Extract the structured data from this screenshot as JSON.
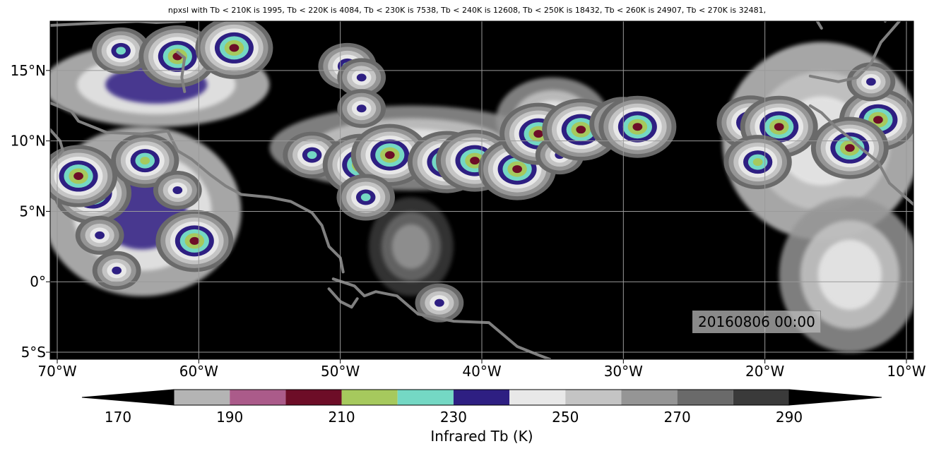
{
  "chart_data": {
    "type": "heatmap",
    "title": "npxsl with Tb < 210K is 1995,  Tb < 220K is 4084,  Tb < 230K is 7538,  Tb < 240K is 12608,  Tb < 250K is 18432,  Tb < 260K is 24907,  Tb < 270K is 32481,",
    "timestamp": "20160806 00:00",
    "x_ticks": [
      {
        "value": -70,
        "label": "70°W"
      },
      {
        "value": -60,
        "label": "60°W"
      },
      {
        "value": -50,
        "label": "50°W"
      },
      {
        "value": -40,
        "label": "40°W"
      },
      {
        "value": -30,
        "label": "30°W"
      },
      {
        "value": -20,
        "label": "20°W"
      },
      {
        "value": -10,
        "label": "10°W"
      }
    ],
    "y_ticks": [
      {
        "value": 15,
        "label": "15°N"
      },
      {
        "value": 10,
        "label": "10°N"
      },
      {
        "value": 5,
        "label": "5°N"
      },
      {
        "value": 0,
        "label": "0°"
      },
      {
        "value": -5,
        "label": "5°S"
      }
    ],
    "xlim": [
      -70.5,
      -9.5
    ],
    "ylim": [
      -5.5,
      18.5
    ],
    "grid": true,
    "colorbar": {
      "label": "Infrared Tb (K)",
      "ticks": [
        170,
        190,
        210,
        230,
        250,
        270,
        290
      ],
      "bounds": [
        170,
        180,
        190,
        200,
        210,
        220,
        230,
        240,
        250,
        260,
        270,
        280,
        290,
        300
      ],
      "colors": [
        "#000000",
        "#b4b4b4",
        "#ab5b8a",
        "#6d0d27",
        "#a6c95d",
        "#74d8c4",
        "#2e1f82",
        "#e8e8e8",
        "#c4c4c4",
        "#959595",
        "#6a6a6a",
        "#3a3a3a",
        "#000000"
      ],
      "extend": "both"
    },
    "thresholds": [
      {
        "tb_below_k": 210,
        "npxsl": 1995
      },
      {
        "tb_below_k": 220,
        "npxsl": 4084
      },
      {
        "tb_below_k": 230,
        "npxsl": 7538
      },
      {
        "tb_below_k": 240,
        "npxsl": 12608
      },
      {
        "tb_below_k": 250,
        "npxsl": 18432
      },
      {
        "tb_below_k": 260,
        "npxsl": 24907
      },
      {
        "tb_below_k": 270,
        "npxsl": 32481
      }
    ],
    "cloud_clusters": [
      {
        "lon": -65.5,
        "lat": 16.4,
        "tb_min": 225
      },
      {
        "lon": -61.5,
        "lat": 16.0,
        "tb_min": 205
      },
      {
        "lon": -57.5,
        "lat": 16.6,
        "tb_min": 202
      },
      {
        "lon": -49.5,
        "lat": 15.3,
        "tb_min": 225
      },
      {
        "lon": -48.5,
        "lat": 14.5,
        "tb_min": 230
      },
      {
        "lon": -48.5,
        "lat": 12.3,
        "tb_min": 232
      },
      {
        "lon": -67.5,
        "lat": 6.3,
        "tb_min": 203
      },
      {
        "lon": -68.5,
        "lat": 7.5,
        "tb_min": 205
      },
      {
        "lon": -63.8,
        "lat": 8.6,
        "tb_min": 208
      },
      {
        "lon": -61.5,
        "lat": 6.5,
        "tb_min": 228
      },
      {
        "lon": -67.0,
        "lat": 3.3,
        "tb_min": 228
      },
      {
        "lon": -65.8,
        "lat": 0.8,
        "tb_min": 228
      },
      {
        "lon": -60.3,
        "lat": 2.9,
        "tb_min": 205
      },
      {
        "lon": -52.0,
        "lat": 9.0,
        "tb_min": 225
      },
      {
        "lon": -48.5,
        "lat": 8.3,
        "tb_min": 205
      },
      {
        "lon": -46.5,
        "lat": 9.0,
        "tb_min": 200
      },
      {
        "lon": -48.2,
        "lat": 6.0,
        "tb_min": 225
      },
      {
        "lon": -43.5,
        "lat": 8.6,
        "tb_min": 228
      },
      {
        "lon": -42.5,
        "lat": 8.5,
        "tb_min": 202
      },
      {
        "lon": -40.5,
        "lat": 8.6,
        "tb_min": 203
      },
      {
        "lon": -37.5,
        "lat": 8.0,
        "tb_min": 203
      },
      {
        "lon": -36.0,
        "lat": 10.5,
        "tb_min": 203
      },
      {
        "lon": -34.5,
        "lat": 9.0,
        "tb_min": 230
      },
      {
        "lon": -33.0,
        "lat": 10.8,
        "tb_min": 202
      },
      {
        "lon": -30.0,
        "lat": 11.2,
        "tb_min": 212
      },
      {
        "lon": -29.0,
        "lat": 11.0,
        "tb_min": 203
      },
      {
        "lon": -21.0,
        "lat": 11.3,
        "tb_min": 210
      },
      {
        "lon": -19.0,
        "lat": 11.0,
        "tb_min": 205
      },
      {
        "lon": -12.0,
        "lat": 11.5,
        "tb_min": 202
      },
      {
        "lon": -14.0,
        "lat": 9.5,
        "tb_min": 205
      },
      {
        "lon": -12.5,
        "lat": 14.2,
        "tb_min": 228
      },
      {
        "lon": -20.5,
        "lat": 8.5,
        "tb_min": 210
      },
      {
        "lon": -43.0,
        "lat": -1.5,
        "tb_min": 232
      }
    ],
    "warm_cloud_areas": [
      {
        "lon": -63,
        "lat": 14.0,
        "rx": 8.0,
        "ry": 3.0,
        "tb": 255
      },
      {
        "lon": -45,
        "lat": 9.5,
        "rx": 10.0,
        "ry": 3.0,
        "tb": 262
      },
      {
        "lon": -35,
        "lat": 11.5,
        "rx": 4.0,
        "ry": 3.0,
        "tb": 265
      },
      {
        "lon": -64,
        "lat": 5.0,
        "rx": 7.0,
        "ry": 6.0,
        "tb": 252
      },
      {
        "lon": -16,
        "lat": 10.0,
        "rx": 7.0,
        "ry": 7.0,
        "tb": 258
      },
      {
        "lon": -14,
        "lat": 0.5,
        "rx": 5.0,
        "ry": 5.5,
        "tb": 262
      },
      {
        "lon": -45,
        "lat": 2.5,
        "rx": 3.0,
        "ry": 3.5,
        "tb": 282
      }
    ],
    "coastlines": [
      [
        [
          -70.5,
          18.2
        ],
        [
          -66.5,
          18.4
        ],
        [
          -64.0,
          18.5
        ]
      ],
      [
        [
          -64.5,
          18.5
        ],
        [
          -63.0,
          18.4
        ],
        [
          -61.0,
          18.5
        ]
      ],
      [
        [
          -61.5,
          16.3
        ],
        [
          -61.0,
          15.9
        ],
        [
          -61.2,
          14.5
        ],
        [
          -61.0,
          13.5
        ]
      ],
      [
        [
          -70.5,
          12.7
        ],
        [
          -69.0,
          12.1
        ],
        [
          -68.5,
          11.4
        ],
        [
          -66.5,
          10.6
        ],
        [
          -64.0,
          10.5
        ],
        [
          -62.2,
          10.7
        ]
      ],
      [
        [
          -70.5,
          10.8
        ],
        [
          -69.8,
          10.0
        ],
        [
          -69.6,
          9.3
        ],
        [
          -70.3,
          8.5
        ]
      ],
      [
        [
          -62.2,
          10.7
        ],
        [
          -61.5,
          9.3
        ],
        [
          -60.5,
          8.7
        ],
        [
          -59.2,
          7.6
        ],
        [
          -58.1,
          6.8
        ],
        [
          -57.0,
          6.2
        ],
        [
          -55.0,
          6.0
        ],
        [
          -53.5,
          5.7
        ],
        [
          -52.0,
          4.9
        ],
        [
          -51.3,
          4.0
        ],
        [
          -50.8,
          2.5
        ],
        [
          -50.0,
          1.7
        ],
        [
          -49.8,
          0.7
        ]
      ],
      [
        [
          -50.5,
          0.2
        ],
        [
          -49.0,
          -0.3
        ],
        [
          -48.3,
          -1.0
        ],
        [
          -47.5,
          -0.7
        ],
        [
          -46.0,
          -1.0
        ],
        [
          -44.5,
          -2.3
        ],
        [
          -42.0,
          -2.8
        ],
        [
          -39.5,
          -2.9
        ],
        [
          -37.5,
          -4.6
        ],
        [
          -36.0,
          -5.2
        ],
        [
          -35.2,
          -5.5
        ]
      ],
      [
        [
          -50.8,
          -0.5
        ],
        [
          -50.0,
          -1.4
        ],
        [
          -49.2,
          -1.8
        ],
        [
          -48.8,
          -1.2
        ]
      ],
      [
        [
          -10.5,
          18.5
        ],
        [
          -11.8,
          17.0
        ],
        [
          -12.5,
          15.5
        ],
        [
          -13.5,
          14.5
        ],
        [
          -14.8,
          14.2
        ],
        [
          -16.8,
          14.6
        ]
      ],
      [
        [
          -17.2,
          20.0
        ],
        [
          -16.0,
          18.0
        ]
      ],
      [
        [
          -11.5,
          18.5
        ],
        [
          -11.3,
          19.0
        ]
      ],
      [
        [
          -16.8,
          12.5
        ],
        [
          -16.0,
          12.0
        ],
        [
          -15.0,
          11.0
        ],
        [
          -14.0,
          10.2
        ],
        [
          -13.0,
          9.3
        ],
        [
          -12.0,
          8.5
        ],
        [
          -11.2,
          7.0
        ],
        [
          -9.5,
          5.5
        ]
      ]
    ]
  }
}
